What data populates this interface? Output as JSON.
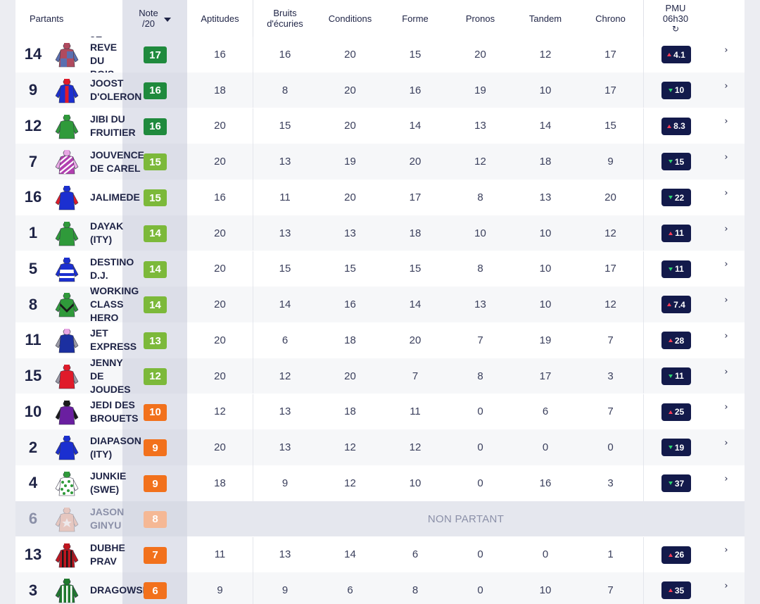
{
  "header": {
    "partants": "Partants",
    "note_line1": "Note",
    "note_line2": "/20",
    "columns": [
      {
        "key": "aptitudes",
        "line1": "Aptitudes",
        "line2": ""
      },
      {
        "key": "bruits",
        "line1": "Bruits",
        "line2": "d'écuries"
      },
      {
        "key": "conditions",
        "line1": "Conditions",
        "line2": ""
      },
      {
        "key": "forme",
        "line1": "Forme",
        "line2": ""
      },
      {
        "key": "pronos",
        "line1": "Pronos",
        "line2": ""
      },
      {
        "key": "tandem",
        "line1": "Tandem",
        "line2": ""
      },
      {
        "key": "chrono",
        "line1": "Chrono",
        "line2": ""
      }
    ],
    "pmu_line1": "PMU",
    "pmu_line2": "06h30",
    "refresh_icon": "refresh-icon"
  },
  "colors": {
    "note_high": "#1f8a3d",
    "note_good": "#7cb93a",
    "note_mid": "#f2711c",
    "note_np": "#f5b895",
    "odds_bg": "#131a4b",
    "odds_up": "#ff3d57",
    "odds_down": "#2dd36f"
  },
  "non_partant_label": "NON PARTANT",
  "rows": [
    {
      "num": "14",
      "name": [
        "JE",
        "REVE",
        "DU",
        "BOIS"
      ],
      "note": "17",
      "tier": "high",
      "scores": [
        "16",
        "16",
        "20",
        "15",
        "20",
        "12",
        "17"
      ],
      "odds": "4.1",
      "trend": "up",
      "silk": {
        "body": "#b04a5e",
        "sleeve": "#5a6fb0",
        "cap": "#b04a5e",
        "pattern": "quarters",
        "p2": "#5a6fb0"
      }
    },
    {
      "num": "9",
      "name": [
        "JOOST",
        "D'OLERON"
      ],
      "note": "16",
      "tier": "high",
      "scores": [
        "18",
        "8",
        "20",
        "16",
        "19",
        "10",
        "17"
      ],
      "odds": "10",
      "trend": "down",
      "silk": {
        "body": "#1b2fd0",
        "sleeve": "#1b2fd0",
        "cap": "#e01b2a",
        "pattern": "stripe",
        "p2": "#e01b2a"
      }
    },
    {
      "num": "12",
      "name": [
        "JIBI DU",
        "FRUITIER"
      ],
      "note": "16",
      "tier": "high",
      "scores": [
        "20",
        "15",
        "20",
        "14",
        "13",
        "14",
        "15"
      ],
      "odds": "8.3",
      "trend": "up",
      "silk": {
        "body": "#2f9a3a",
        "sleeve": "#2f9a3a",
        "cap": "#2f9a3a",
        "pattern": "plain",
        "p2": "#ffffff"
      }
    },
    {
      "num": "7",
      "name": [
        "JOUVENCE",
        "DE CAREL"
      ],
      "note": "15",
      "tier": "good",
      "scores": [
        "20",
        "13",
        "19",
        "20",
        "12",
        "18",
        "9"
      ],
      "odds": "15",
      "trend": "down",
      "silk": {
        "body": "#b23fb0",
        "sleeve": "#e8a6e4",
        "cap": "#e8a6e4",
        "pattern": "diag",
        "p2": "#ffffff"
      }
    },
    {
      "num": "16",
      "name": [
        "JALIMEDE"
      ],
      "note": "15",
      "tier": "good",
      "scores": [
        "16",
        "11",
        "20",
        "17",
        "8",
        "13",
        "20"
      ],
      "odds": "22",
      "trend": "down",
      "silk": {
        "body": "#1b2fd0",
        "sleeve": "#e01b2a",
        "cap": "#1b2fd0",
        "pattern": "plain",
        "p2": "#ffffff"
      }
    },
    {
      "num": "1",
      "name": [
        "DAYAK",
        "(ITY)"
      ],
      "note": "14",
      "tier": "good",
      "scores": [
        "20",
        "13",
        "13",
        "18",
        "10",
        "10",
        "12"
      ],
      "odds": "11",
      "trend": "up",
      "silk": {
        "body": "#2f9a3a",
        "sleeve": "#2f9a3a",
        "cap": "#2f9a3a",
        "pattern": "plain",
        "p2": "#ffffff"
      }
    },
    {
      "num": "5",
      "name": [
        "DESTINO",
        "D.J."
      ],
      "note": "14",
      "tier": "good",
      "scores": [
        "20",
        "15",
        "15",
        "15",
        "8",
        "10",
        "17"
      ],
      "odds": "11",
      "trend": "down",
      "silk": {
        "body": "#1b2fd0",
        "sleeve": "#1b2fd0",
        "cap": "#1b2fd0",
        "pattern": "band",
        "p2": "#ffffff"
      }
    },
    {
      "num": "8",
      "name": [
        "WORKING",
        "CLASS",
        "HERO"
      ],
      "note": "14",
      "tier": "good",
      "scores": [
        "20",
        "14",
        "16",
        "14",
        "13",
        "10",
        "12"
      ],
      "odds": "7.4",
      "trend": "up",
      "silk": {
        "body": "#2f9a3a",
        "sleeve": "#2f9a3a",
        "cap": "#2f9a3a",
        "pattern": "chevron",
        "p2": "#1a1a1a"
      }
    },
    {
      "num": "11",
      "name": [
        "JET",
        "EXPRESS"
      ],
      "note": "13",
      "tier": "good",
      "scores": [
        "20",
        "6",
        "18",
        "20",
        "7",
        "19",
        "7"
      ],
      "odds": "28",
      "trend": "up",
      "silk": {
        "body": "#1b2fa0",
        "sleeve": "#9a9aa6",
        "cap": "#e8a6e4",
        "pattern": "plain",
        "p2": "#ffffff"
      }
    },
    {
      "num": "15",
      "name": [
        "JENNY",
        "DE",
        "JOUDES"
      ],
      "note": "12",
      "tier": "good",
      "scores": [
        "20",
        "12",
        "20",
        "7",
        "8",
        "17",
        "3"
      ],
      "odds": "11",
      "trend": "down",
      "silk": {
        "body": "#e01b2a",
        "sleeve": "#9a9aa6",
        "cap": "#e01b2a",
        "pattern": "plain",
        "p2": "#ffffff"
      }
    },
    {
      "num": "10",
      "name": [
        "JEDI DES",
        "BROUETS"
      ],
      "note": "10",
      "tier": "mid",
      "scores": [
        "12",
        "13",
        "18",
        "11",
        "0",
        "6",
        "7"
      ],
      "odds": "25",
      "trend": "up",
      "silk": {
        "body": "#6a1fa0",
        "sleeve": "#1a1a1a",
        "cap": "#1a1a1a",
        "pattern": "plain",
        "p2": "#ffffff"
      }
    },
    {
      "num": "2",
      "name": [
        "DIAPASON",
        "(ITY)"
      ],
      "note": "9",
      "tier": "mid",
      "scores": [
        "20",
        "13",
        "12",
        "12",
        "0",
        "0",
        "0"
      ],
      "odds": "19",
      "trend": "down",
      "silk": {
        "body": "#1b2fd0",
        "sleeve": "#1b2fd0",
        "cap": "#1b2fd0",
        "pattern": "plain",
        "p2": "#ffffff"
      }
    },
    {
      "num": "4",
      "name": [
        "JUNKIE",
        "(SWE)"
      ],
      "note": "9",
      "tier": "mid",
      "scores": [
        "18",
        "9",
        "12",
        "10",
        "0",
        "16",
        "3"
      ],
      "odds": "37",
      "trend": "down",
      "silk": {
        "body": "#ffffff",
        "sleeve": "#ffffff",
        "cap": "#2f9a3a",
        "pattern": "dots",
        "p2": "#2f9a3a"
      }
    },
    {
      "num": "6",
      "name": [
        "JASON",
        "GINYU"
      ],
      "note": "8",
      "tier": "np",
      "non_partant": true,
      "scores": [],
      "odds": "",
      "trend": "",
      "silk": {
        "body": "#e8a28a",
        "sleeve": "#e8a28a",
        "cap": "#e8a28a",
        "pattern": "star",
        "p2": "#ffffff"
      }
    },
    {
      "num": "13",
      "name": [
        "DUBHE",
        "PRAV"
      ],
      "note": "7",
      "tier": "mid",
      "scores": [
        "11",
        "13",
        "14",
        "6",
        "0",
        "0",
        "1"
      ],
      "odds": "26",
      "trend": "up",
      "silk": {
        "body": "#c0161f",
        "sleeve": "#c0161f",
        "cap": "#c0161f",
        "pattern": "vstripes",
        "p2": "#1a1a1a"
      }
    },
    {
      "num": "3",
      "name": [
        "DRAGOWSKI"
      ],
      "note": "6",
      "tier": "mid",
      "scores": [
        "9",
        "9",
        "6",
        "8",
        "0",
        "10",
        "7"
      ],
      "odds": "35",
      "trend": "up",
      "silk": {
        "body": "#1f7a2e",
        "sleeve": "#1f7a2e",
        "cap": "#1f7a2e",
        "pattern": "vstripes",
        "p2": "#ffffff"
      }
    }
  ]
}
